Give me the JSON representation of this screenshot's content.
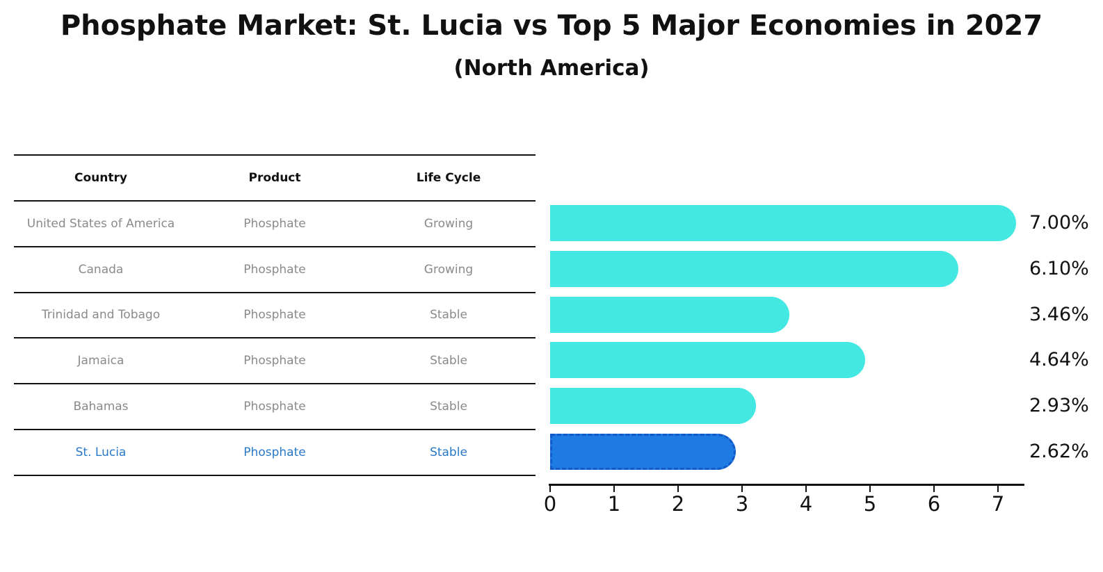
{
  "title": "Phosphate Market: St. Lucia vs Top 5 Major Economies in 2027",
  "subtitle": "(North America)",
  "table": {
    "headers": [
      "Country",
      "Product",
      "Life Cycle"
    ],
    "rows": [
      {
        "country": "United States of America",
        "product": "Phosphate",
        "life_cycle": "Growing",
        "highlight": false
      },
      {
        "country": "Canada",
        "product": "Phosphate",
        "life_cycle": "Growing",
        "highlight": false
      },
      {
        "country": "Trinidad and Tobago",
        "product": "Phosphate",
        "life_cycle": "Stable",
        "highlight": false
      },
      {
        "country": "Jamaica",
        "product": "Phosphate",
        "life_cycle": "Stable",
        "highlight": false
      },
      {
        "country": "Bahamas",
        "product": "Phosphate",
        "life_cycle": "Stable",
        "highlight": false
      },
      {
        "country": "St. Lucia",
        "product": "Phosphate",
        "life_cycle": "Stable",
        "highlight": true
      }
    ]
  },
  "chart_data": {
    "type": "bar",
    "orientation": "horizontal",
    "title": "Phosphate Market: St. Lucia vs Top 5 Major Economies in 2027",
    "subtitle": "(North America)",
    "categories": [
      "United States of America",
      "Canada",
      "Trinidad and Tobago",
      "Jamaica",
      "Bahamas",
      "St. Lucia"
    ],
    "values": [
      7.0,
      6.1,
      3.46,
      4.64,
      2.93,
      2.62
    ],
    "value_labels": [
      "7.00%",
      "6.10%",
      "3.46%",
      "4.64%",
      "2.93%",
      "2.62%"
    ],
    "x_ticks": [
      "0",
      "1",
      "2",
      "3",
      "4",
      "5",
      "6",
      "7"
    ],
    "xlim": [
      0,
      7.4
    ],
    "grid": false,
    "legend": false,
    "highlight_index": 5,
    "colors": {
      "bar": "#42E8E1",
      "highlight_bar": "#1E7BE1",
      "highlight_border": "#1259C9",
      "highlight_text": "#2878C8",
      "table_text": "#8A8A8A",
      "axis_text": "#111111"
    }
  }
}
